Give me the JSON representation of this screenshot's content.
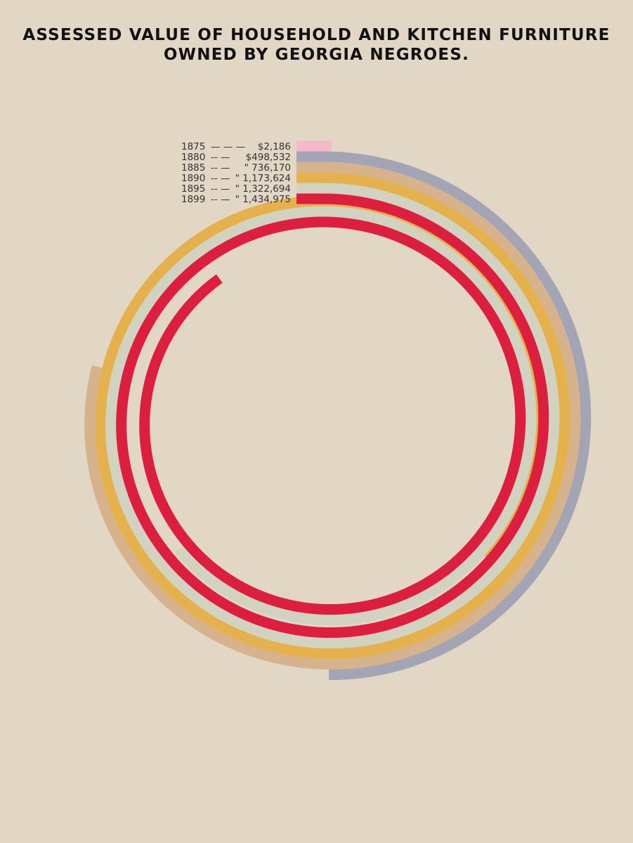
{
  "chart_data": {
    "type": "spiral-bar",
    "title": "ASSESSED VALUE OF HOUSEHOLD AND KITCHEN FURNITURE OWNED BY GEORGIA NEGROES.",
    "title_lines": [
      "ASSESSED VALUE OF HOUSEHOLD AND KITCHEN FURNITURE",
      "OWNED BY GEORGIA NEGROES."
    ],
    "x": [
      "1875",
      "1880",
      "1885",
      "1890",
      "1895",
      "1899"
    ],
    "series": [
      {
        "year": "1875",
        "dashes": "— — —",
        "value_text": "$2,186",
        "value": 2186,
        "color": "#f5b8c8"
      },
      {
        "year": "1880",
        "dashes": "-- —",
        "value_text": "$498,532",
        "value": 498532,
        "color": "#a3a5b5"
      },
      {
        "year": "1885",
        "dashes": "-- —",
        "value_text": "\"   736,170",
        "value": 736170,
        "color": "#d6b38c"
      },
      {
        "year": "1890",
        "dashes": "-- —",
        "value_text": "\" 1,173,624",
        "value": 1173624,
        "color": "#e4b14c"
      },
      {
        "year": "1895",
        "dashes": "-- —",
        "value_text": "\" 1,322,694",
        "value": 1322694,
        "color": "#d2d2c0"
      },
      {
        "year": "1899",
        "dashes": "-- —",
        "value_text": "\" 1,434,975",
        "value": 1434975,
        "color": "#dc1f3e"
      }
    ],
    "background": "#e2d6c5"
  }
}
